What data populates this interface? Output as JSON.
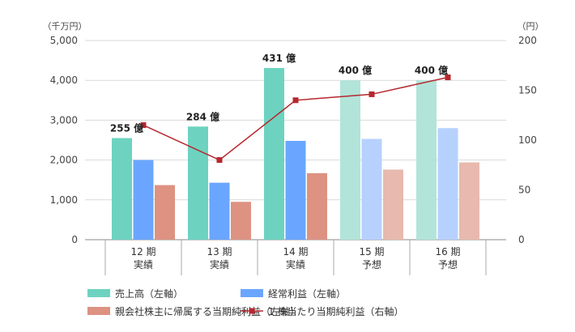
{
  "chart_data": {
    "type": "bar",
    "left_unit": "（千万円）",
    "right_unit": "（円）",
    "categories": [
      {
        "line1": "12 期",
        "line2": "実績"
      },
      {
        "line1": "13 期",
        "line2": "実績"
      },
      {
        "line1": "14 期",
        "line2": "実績"
      },
      {
        "line1": "15 期",
        "line2": "予想"
      },
      {
        "line1": "16 期",
        "line2": "予想"
      }
    ],
    "forecast_flags": [
      false,
      false,
      false,
      true,
      true
    ],
    "y_left": {
      "min": 0,
      "max": 5000,
      "ticks": [
        "0",
        "1,000",
        "2,000",
        "3,000",
        "4,000",
        "5,000"
      ],
      "tick_values": [
        0,
        1000,
        2000,
        3000,
        4000,
        5000
      ]
    },
    "y_right": {
      "min": 0,
      "max": 200,
      "ticks": [
        "0",
        "50",
        "100",
        "150",
        "200"
      ],
      "tick_values": [
        0,
        50,
        100,
        150,
        200
      ]
    },
    "grid": true,
    "series": [
      {
        "name": "売上高（左軸）",
        "type": "bar",
        "axis": "left",
        "color": "#6dd3c0",
        "forecast_color": "#b2e4d9",
        "values": [
          2550,
          2840,
          4310,
          4000,
          4000
        ]
      },
      {
        "name": "経常利益（左軸）",
        "type": "bar",
        "axis": "left",
        "color": "#6aa6ff",
        "forecast_color": "#b7d1ff",
        "values": [
          2000,
          1430,
          2480,
          2530,
          2800
        ]
      },
      {
        "name": "親会社株主に帰属する当期純利益（左軸）",
        "type": "bar",
        "axis": "left",
        "color": "#dd9282",
        "forecast_color": "#e8b9ae",
        "values": [
          1370,
          950,
          1670,
          1760,
          1940
        ]
      },
      {
        "name": "1 株当たり当期純利益（右軸）",
        "type": "line",
        "axis": "right",
        "color": "#b5282e",
        "values": [
          115,
          80,
          140,
          146,
          163
        ]
      }
    ],
    "data_labels": [
      "255 億",
      "284 億",
      "431 億",
      "400 億",
      "400 億"
    ],
    "legend_position": "bottom"
  }
}
